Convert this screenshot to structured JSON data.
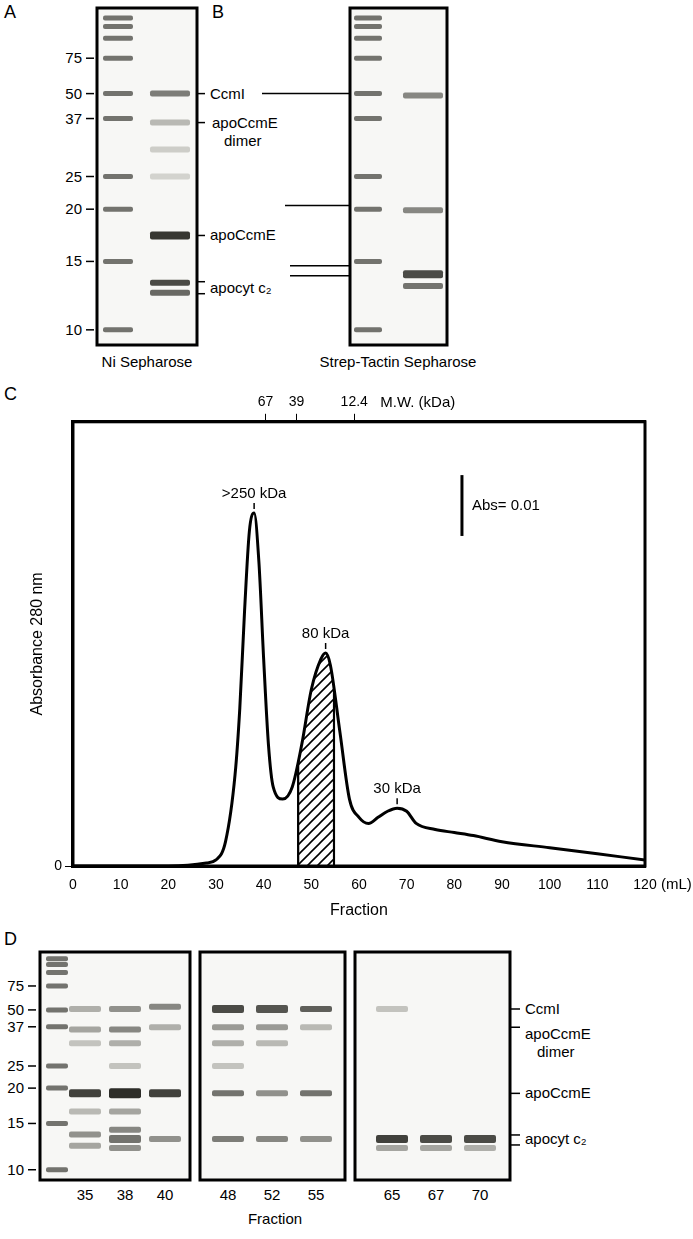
{
  "gels": [
    {
      "panel": "A",
      "caption": "Ni Sepharose",
      "marker_labels": [
        75,
        50,
        37,
        25,
        20,
        15,
        10
      ]
    },
    {
      "panel": "B",
      "caption": "Strep-Tactin Sepharose"
    }
  ],
  "band_labels_AB": [
    [
      "CcmI"
    ],
    [
      "apoCcmE",
      "dimer"
    ],
    [
      "apoCcmE"
    ],
    [
      "apocyt c₂"
    ]
  ],
  "chart_data": {
    "panel": "C",
    "type": "line",
    "x": [
      0,
      10,
      20,
      28,
      30,
      32,
      34,
      35,
      36,
      37,
      38,
      39,
      40,
      41,
      42,
      44,
      46,
      48,
      50,
      52,
      53,
      54,
      56,
      58,
      60,
      62,
      64,
      66,
      68,
      70,
      72,
      76,
      80,
      84,
      90,
      100,
      110,
      120
    ],
    "values": [
      0,
      0,
      0,
      0.0005,
      0.001,
      0.004,
      0.015,
      0.026,
      0.042,
      0.055,
      0.058,
      0.05,
      0.034,
      0.02,
      0.013,
      0.011,
      0.013,
      0.02,
      0.029,
      0.034,
      0.035,
      0.033,
      0.022,
      0.011,
      0.008,
      0.007,
      0.008,
      0.009,
      0.0095,
      0.009,
      0.007,
      0.006,
      0.0055,
      0.005,
      0.004,
      0.003,
      0.002,
      0.001
    ],
    "color": "#000000",
    "xlabel": "Fraction",
    "xlabel_unit": "(mL)",
    "ylabel": "Absorbance 280 nm",
    "xlim": [
      0,
      120
    ],
    "xticks": [
      0,
      10,
      20,
      30,
      40,
      50,
      60,
      70,
      80,
      90,
      100,
      110,
      120
    ],
    "ylim": [
      0,
      0.073
    ],
    "yticks": [
      0
    ],
    "grid": false,
    "top_axis": {
      "title": "M.W. (kDa)",
      "ticks": [
        {
          "value": 40.4,
          "label": "67"
        },
        {
          "value": 46.9,
          "label": "39"
        },
        {
          "value": 59,
          "label": "12.4"
        }
      ]
    },
    "annotations": [
      {
        "x": 38,
        "y": 0.058,
        "text": ">250 kDa"
      },
      {
        "x": 53,
        "y": 0.035,
        "text": "80 kDa"
      },
      {
        "x": 68,
        "y": 0.0095,
        "text": "30 kDa"
      }
    ],
    "shaded_range": [
      47,
      55
    ],
    "scale_bar": {
      "value": 0.01,
      "label": "Abs= 0.01"
    }
  },
  "gel_D": {
    "panel": "D",
    "marker_labels": [
      75,
      50,
      37,
      25,
      20,
      15,
      10
    ],
    "fractions": [
      [
        35,
        38,
        40
      ],
      [
        48,
        52,
        55
      ],
      [
        65,
        67,
        70
      ]
    ],
    "xlabel": "Fraction",
    "band_labels": [
      [
        "CcmI"
      ],
      [
        "apoCcmE",
        "dimer"
      ],
      [
        "apoCcmE"
      ],
      [
        "apocyt c₂"
      ]
    ]
  }
}
